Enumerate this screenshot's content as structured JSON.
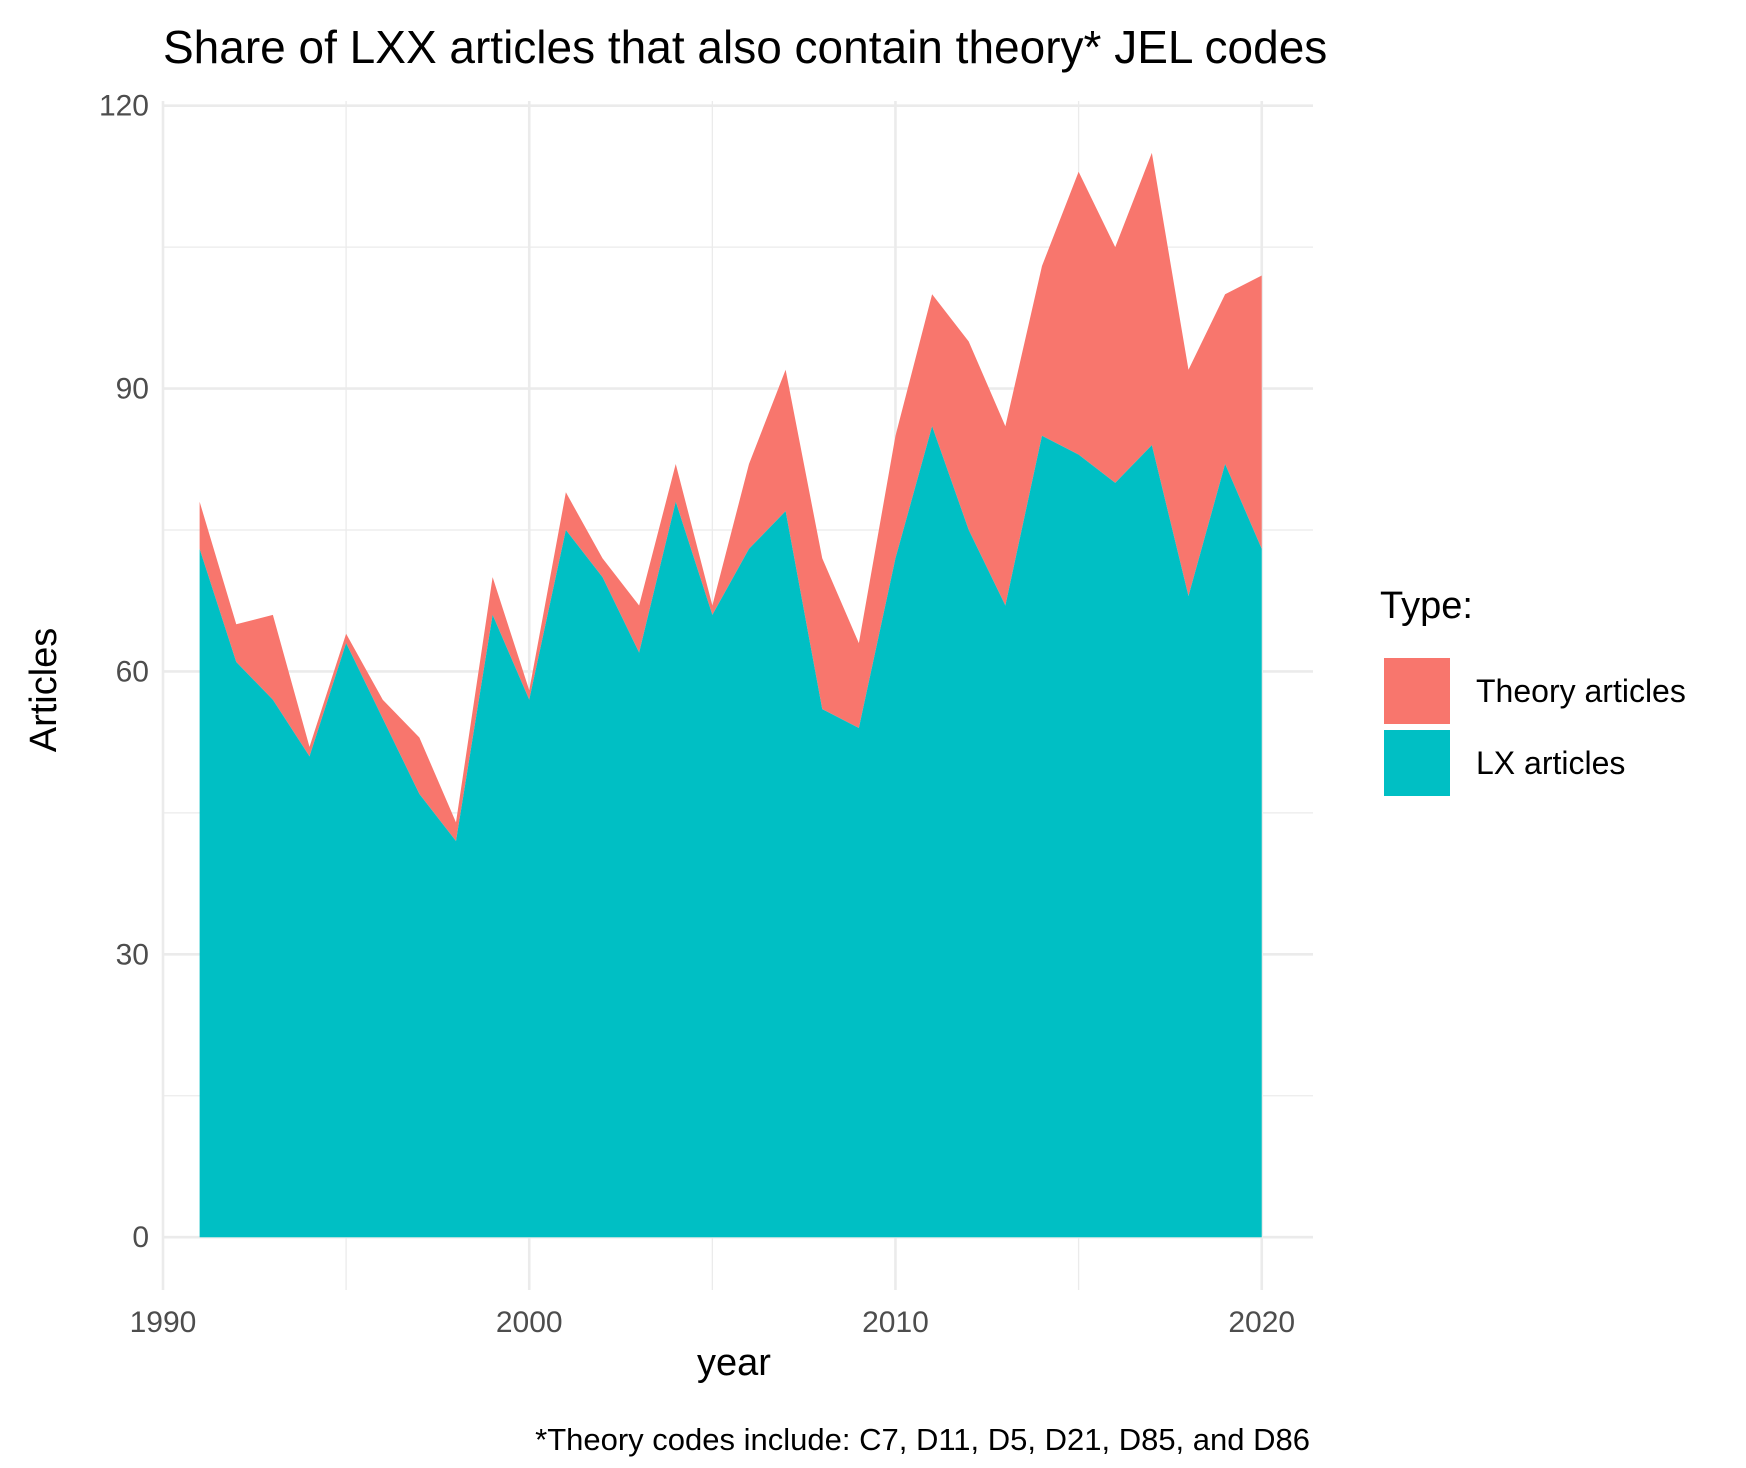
{
  "chart_data": {
    "type": "area",
    "stacked": true,
    "title": "Share of LXX articles that also contain theory* JEL codes",
    "xlabel": "year",
    "ylabel": "Articles",
    "caption": "*Theory codes include: C7, D11, D5, D21, D85, and D86",
    "legend": {
      "title": "Type:",
      "position": "right"
    },
    "xlim": [
      1990,
      2021.4
    ],
    "ylim": [
      -5.6,
      120.5
    ],
    "x_ticks": [
      1990,
      2000,
      2010,
      2020
    ],
    "x_tick_labels": [
      "1990",
      "2000",
      "2010",
      "2020"
    ],
    "y_ticks": [
      0,
      30,
      60,
      90,
      120
    ],
    "y_tick_labels": [
      "0",
      "30",
      "60",
      "90",
      "120"
    ],
    "grid": true,
    "x": [
      1991,
      1992,
      1993,
      1994,
      1995,
      1996,
      1997,
      1998,
      1999,
      2000,
      2001,
      2002,
      2003,
      2004,
      2005,
      2006,
      2007,
      2008,
      2009,
      2010,
      2011,
      2012,
      2013,
      2014,
      2015,
      2016,
      2017,
      2018,
      2019,
      2020
    ],
    "series": [
      {
        "name": "Theory articles",
        "color": "#F8766D",
        "values": [
          5,
          4,
          9,
          1,
          1,
          2,
          6,
          2,
          4,
          1,
          4,
          2,
          5,
          4,
          1,
          9,
          15,
          16,
          9,
          13,
          14,
          20,
          19,
          18,
          30,
          25,
          31,
          24,
          18,
          29
        ]
      },
      {
        "name": "LX articles",
        "color": "#00BFC4",
        "values": [
          73,
          61,
          57,
          51,
          63,
          55,
          47,
          42,
          66,
          57,
          75,
          70,
          62,
          78,
          66,
          73,
          77,
          56,
          54,
          72,
          86,
          75,
          67,
          85,
          83,
          80,
          84,
          68,
          82,
          73
        ]
      }
    ]
  }
}
